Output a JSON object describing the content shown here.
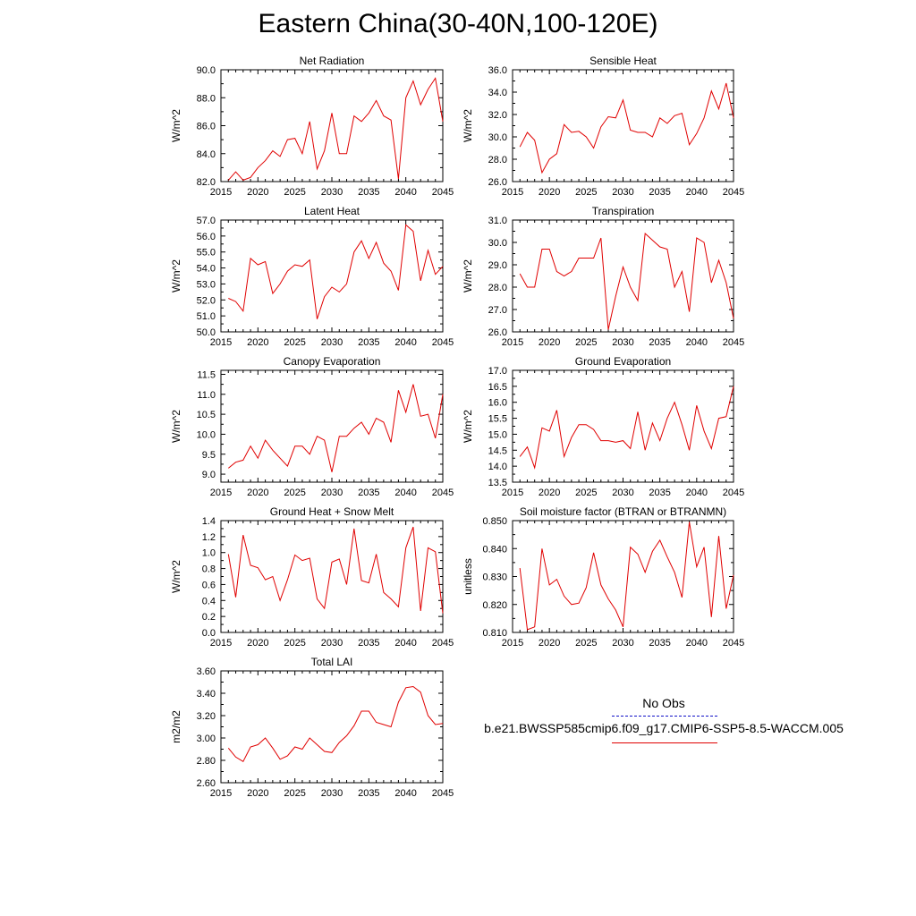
{
  "title": "Eastern China(30-40N,100-120E)",
  "colors": {
    "model_line": "#e00000",
    "obs_line": "#1010c8",
    "axis": "#000000"
  },
  "legend": {
    "obs_label": "No Obs",
    "model_label": "b.e21.BWSSP585cmip6.f09_g17.CMIP6-SSP5-8.5-WACCM.005"
  },
  "chart_data": [
    {
      "type": "line",
      "title": "Net Radiation",
      "ylabel": "W/m^2",
      "xlim": [
        2015,
        2045
      ],
      "ylim": [
        82,
        90
      ],
      "xticks": [
        2015,
        2020,
        2025,
        2030,
        2035,
        2040,
        2045
      ],
      "yticks": [
        82,
        84,
        86,
        88,
        90
      ],
      "ytick_labels": [
        "82.0",
        "84.0",
        "86.0",
        "88.0",
        "90.0"
      ],
      "x": [
        2016,
        2017,
        2018,
        2019,
        2020,
        2021,
        2022,
        2023,
        2024,
        2025,
        2026,
        2027,
        2028,
        2029,
        2030,
        2031,
        2032,
        2033,
        2034,
        2035,
        2036,
        2037,
        2038,
        2039,
        2040,
        2041,
        2042,
        2043,
        2044,
        2045
      ],
      "values": [
        82.1,
        82.7,
        82.1,
        82.3,
        83.0,
        83.5,
        84.2,
        83.8,
        85.0,
        85.1,
        84.0,
        86.3,
        82.9,
        84.2,
        86.9,
        84.0,
        84.0,
        86.7,
        86.3,
        86.9,
        87.8,
        86.7,
        86.4,
        82.2,
        88.0,
        89.2,
        87.5,
        88.6,
        89.4,
        86.3
      ]
    },
    {
      "type": "line",
      "title": "Sensible Heat",
      "ylabel": "W/m^2",
      "xlim": [
        2015,
        2045
      ],
      "ylim": [
        26,
        36
      ],
      "xticks": [
        2015,
        2020,
        2025,
        2030,
        2035,
        2040,
        2045
      ],
      "yticks": [
        26,
        28,
        30,
        32,
        34,
        36
      ],
      "ytick_labels": [
        "26.0",
        "28.0",
        "30.0",
        "32.0",
        "34.0",
        "36.0"
      ],
      "x": [
        2016,
        2017,
        2018,
        2019,
        2020,
        2021,
        2022,
        2023,
        2024,
        2025,
        2026,
        2027,
        2028,
        2029,
        2030,
        2031,
        2032,
        2033,
        2034,
        2035,
        2036,
        2037,
        2038,
        2039,
        2040,
        2041,
        2042,
        2043,
        2044,
        2045
      ],
      "values": [
        29.1,
        30.4,
        29.7,
        26.8,
        28.0,
        28.5,
        31.1,
        30.4,
        30.5,
        30.0,
        29.0,
        30.9,
        31.8,
        31.7,
        33.3,
        30.6,
        30.4,
        30.4,
        30.0,
        31.7,
        31.2,
        31.9,
        32.1,
        29.3,
        30.3,
        31.7,
        34.1,
        32.5,
        34.8,
        31.7
      ]
    },
    {
      "type": "line",
      "title": "Latent Heat",
      "ylabel": "W/m^2",
      "xlim": [
        2015,
        2045
      ],
      "ylim": [
        50,
        57
      ],
      "xticks": [
        2015,
        2020,
        2025,
        2030,
        2035,
        2040,
        2045
      ],
      "yticks": [
        50,
        51,
        52,
        53,
        54,
        55,
        56,
        57
      ],
      "ytick_labels": [
        "50.0",
        "51.0",
        "52.0",
        "53.0",
        "54.0",
        "55.0",
        "56.0",
        "57.0"
      ],
      "x": [
        2016,
        2017,
        2018,
        2019,
        2020,
        2021,
        2022,
        2023,
        2024,
        2025,
        2026,
        2027,
        2028,
        2029,
        2030,
        2031,
        2032,
        2033,
        2034,
        2035,
        2036,
        2037,
        2038,
        2039,
        2040,
        2041,
        2042,
        2043,
        2044,
        2045
      ],
      "values": [
        52.1,
        51.9,
        51.3,
        54.6,
        54.2,
        54.4,
        52.4,
        53.0,
        53.8,
        54.2,
        54.1,
        54.5,
        50.8,
        52.2,
        52.8,
        52.5,
        53.0,
        55.0,
        55.7,
        54.6,
        55.6,
        54.3,
        53.8,
        52.6,
        56.7,
        56.3,
        53.2,
        55.1,
        53.6,
        54.1
      ]
    },
    {
      "type": "line",
      "title": "Transpiration",
      "ylabel": "W/m^2",
      "xlim": [
        2015,
        2045
      ],
      "ylim": [
        26,
        31
      ],
      "xticks": [
        2015,
        2020,
        2025,
        2030,
        2035,
        2040,
        2045
      ],
      "yticks": [
        26,
        27,
        28,
        29,
        30,
        31
      ],
      "ytick_labels": [
        "26.0",
        "27.0",
        "28.0",
        "29.0",
        "30.0",
        "31.0"
      ],
      "x": [
        2016,
        2017,
        2018,
        2019,
        2020,
        2021,
        2022,
        2023,
        2024,
        2025,
        2026,
        2027,
        2028,
        2029,
        2030,
        2031,
        2032,
        2033,
        2034,
        2035,
        2036,
        2037,
        2038,
        2039,
        2040,
        2041,
        2042,
        2043,
        2044,
        2045
      ],
      "values": [
        28.6,
        28.0,
        28.0,
        29.7,
        29.7,
        28.7,
        28.5,
        28.7,
        29.3,
        29.3,
        29.3,
        30.2,
        26.1,
        27.6,
        28.9,
        28.0,
        27.4,
        30.4,
        30.1,
        29.8,
        29.7,
        28.0,
        28.7,
        26.9,
        30.2,
        30.0,
        28.2,
        29.2,
        28.2,
        26.6
      ]
    },
    {
      "type": "line",
      "title": "Canopy Evaporation",
      "ylabel": "W/m^2",
      "xlim": [
        2015,
        2045
      ],
      "ylim": [
        8.8,
        11.6
      ],
      "xticks": [
        2015,
        2020,
        2025,
        2030,
        2035,
        2040,
        2045
      ],
      "yticks": [
        9.0,
        9.5,
        10.0,
        10.5,
        11.0,
        11.5
      ],
      "ytick_labels": [
        "9.0",
        "9.5",
        "10.0",
        "10.5",
        "11.0",
        "11.5"
      ],
      "x": [
        2016,
        2017,
        2018,
        2019,
        2020,
        2021,
        2022,
        2023,
        2024,
        2025,
        2026,
        2027,
        2028,
        2029,
        2030,
        2031,
        2032,
        2033,
        2034,
        2035,
        2036,
        2037,
        2038,
        2039,
        2040,
        2041,
        2042,
        2043,
        2044,
        2045
      ],
      "values": [
        9.15,
        9.3,
        9.35,
        9.7,
        9.4,
        9.85,
        9.6,
        9.4,
        9.2,
        9.7,
        9.7,
        9.5,
        9.95,
        9.85,
        9.05,
        9.95,
        9.95,
        10.15,
        10.3,
        10.0,
        10.4,
        10.3,
        9.8,
        11.1,
        10.55,
        11.25,
        10.45,
        10.5,
        9.9,
        11.0
      ]
    },
    {
      "type": "line",
      "title": "Ground Evaporation",
      "ylabel": "W/m^2",
      "xlim": [
        2015,
        2045
      ],
      "ylim": [
        13.5,
        17.0
      ],
      "xticks": [
        2015,
        2020,
        2025,
        2030,
        2035,
        2040,
        2045
      ],
      "yticks": [
        13.5,
        14.0,
        14.5,
        15.0,
        15.5,
        16.0,
        16.5,
        17.0
      ],
      "ytick_labels": [
        "13.5",
        "14.0",
        "14.5",
        "15.0",
        "15.5",
        "16.0",
        "16.5",
        "17.0"
      ],
      "x": [
        2016,
        2017,
        2018,
        2019,
        2020,
        2021,
        2022,
        2023,
        2024,
        2025,
        2026,
        2027,
        2028,
        2029,
        2030,
        2031,
        2032,
        2033,
        2034,
        2035,
        2036,
        2037,
        2038,
        2039,
        2040,
        2041,
        2042,
        2043,
        2044,
        2045
      ],
      "values": [
        14.3,
        14.6,
        13.95,
        15.2,
        15.1,
        15.75,
        14.3,
        14.9,
        15.3,
        15.3,
        15.15,
        14.8,
        14.8,
        14.75,
        14.8,
        14.55,
        15.7,
        14.5,
        15.35,
        14.8,
        15.5,
        16.0,
        15.3,
        14.5,
        15.9,
        15.1,
        14.55,
        15.5,
        15.55,
        16.5
      ]
    },
    {
      "type": "line",
      "title": "Ground Heat + Snow Melt",
      "ylabel": "W/m^2",
      "xlim": [
        2015,
        2045
      ],
      "ylim": [
        0.0,
        1.4
      ],
      "xticks": [
        2015,
        2020,
        2025,
        2030,
        2035,
        2040,
        2045
      ],
      "yticks": [
        0.0,
        0.2,
        0.4,
        0.6,
        0.8,
        1.0,
        1.2,
        1.4
      ],
      "ytick_labels": [
        "0.0",
        "0.2",
        "0.4",
        "0.6",
        "0.8",
        "1.0",
        "1.2",
        "1.4"
      ],
      "x": [
        2016,
        2017,
        2018,
        2019,
        2020,
        2021,
        2022,
        2023,
        2024,
        2025,
        2026,
        2027,
        2028,
        2029,
        2030,
        2031,
        2032,
        2033,
        2034,
        2035,
        2036,
        2037,
        2038,
        2039,
        2040,
        2041,
        2042,
        2043,
        2044,
        2045
      ],
      "values": [
        0.98,
        0.44,
        1.22,
        0.84,
        0.81,
        0.66,
        0.7,
        0.4,
        0.66,
        0.97,
        0.9,
        0.93,
        0.42,
        0.3,
        0.88,
        0.92,
        0.6,
        1.3,
        0.65,
        0.62,
        0.98,
        0.5,
        0.42,
        0.32,
        1.06,
        1.32,
        0.27,
        1.06,
        1.01,
        0.24
      ]
    },
    {
      "type": "line",
      "title": "Soil moisture factor (BTRAN or BTRANMN)",
      "ylabel": "unitless",
      "xlim": [
        2015,
        2045
      ],
      "ylim": [
        0.81,
        0.85
      ],
      "xticks": [
        2015,
        2020,
        2025,
        2030,
        2035,
        2040,
        2045
      ],
      "yticks": [
        0.81,
        0.82,
        0.83,
        0.84,
        0.85
      ],
      "ytick_labels": [
        "0.810",
        "0.820",
        "0.830",
        "0.840",
        "0.850"
      ],
      "x": [
        2016,
        2017,
        2018,
        2019,
        2020,
        2021,
        2022,
        2023,
        2024,
        2025,
        2026,
        2027,
        2028,
        2029,
        2030,
        2031,
        2032,
        2033,
        2034,
        2035,
        2036,
        2037,
        2038,
        2039,
        2040,
        2041,
        2042,
        2043,
        2044,
        2045
      ],
      "values": [
        0.833,
        0.811,
        0.812,
        0.84,
        0.827,
        0.829,
        0.823,
        0.82,
        0.8205,
        0.826,
        0.8385,
        0.827,
        0.822,
        0.818,
        0.812,
        0.8405,
        0.838,
        0.8315,
        0.839,
        0.843,
        0.837,
        0.8315,
        0.8225,
        0.8495,
        0.8335,
        0.8405,
        0.8155,
        0.8445,
        0.8185,
        0.8305
      ]
    },
    {
      "type": "line",
      "title": "Total LAI",
      "ylabel": "m2/m2",
      "xlim": [
        2015,
        2045
      ],
      "ylim": [
        2.6,
        3.6
      ],
      "xticks": [
        2015,
        2020,
        2025,
        2030,
        2035,
        2040,
        2045
      ],
      "yticks": [
        2.6,
        2.8,
        3.0,
        3.2,
        3.4,
        3.6
      ],
      "ytick_labels": [
        "2.60",
        "2.80",
        "3.00",
        "3.20",
        "3.40",
        "3.60"
      ],
      "x": [
        2016,
        2017,
        2018,
        2019,
        2020,
        2021,
        2022,
        2023,
        2024,
        2025,
        2026,
        2027,
        2028,
        2029,
        2030,
        2031,
        2032,
        2033,
        2034,
        2035,
        2036,
        2037,
        2038,
        2039,
        2040,
        2041,
        2042,
        2043,
        2044,
        2045
      ],
      "values": [
        2.91,
        2.83,
        2.79,
        2.92,
        2.94,
        3.0,
        2.91,
        2.81,
        2.84,
        2.92,
        2.9,
        3.0,
        2.94,
        2.88,
        2.87,
        2.96,
        3.02,
        3.11,
        3.24,
        3.24,
        3.14,
        3.12,
        3.1,
        3.32,
        3.45,
        3.46,
        3.41,
        3.2,
        3.12,
        3.13
      ]
    }
  ]
}
